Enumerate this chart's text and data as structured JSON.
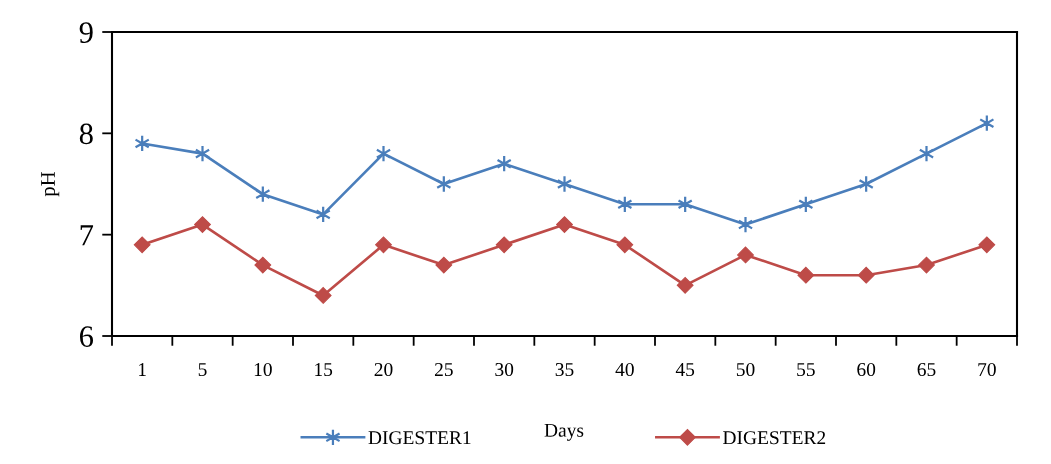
{
  "chart_data": {
    "type": "line",
    "xlabel": "Days",
    "ylabel": "pH",
    "categories": [
      "1",
      "5",
      "10",
      "15",
      "20",
      "25",
      "30",
      "35",
      "40",
      "45",
      "50",
      "55",
      "60",
      "65",
      "70"
    ],
    "ylim": [
      6,
      9
    ],
    "yticks": [
      6,
      7,
      8,
      9
    ],
    "legend": "bottom",
    "series": [
      {
        "name": "DIGESTER1",
        "color": "#4a7ebb",
        "marker": "cross",
        "values": [
          7.9,
          7.8,
          7.4,
          7.2,
          7.8,
          7.5,
          7.7,
          7.5,
          7.3,
          7.3,
          7.1,
          7.3,
          7.5,
          7.8,
          8.1
        ]
      },
      {
        "name": "DIGESTER2",
        "color": "#be4b48",
        "marker": "diamond",
        "values": [
          6.9,
          7.1,
          6.7,
          6.4,
          6.9,
          6.7,
          6.9,
          7.1,
          6.9,
          6.5,
          6.8,
          6.6,
          6.6,
          6.7,
          6.9
        ]
      }
    ]
  }
}
